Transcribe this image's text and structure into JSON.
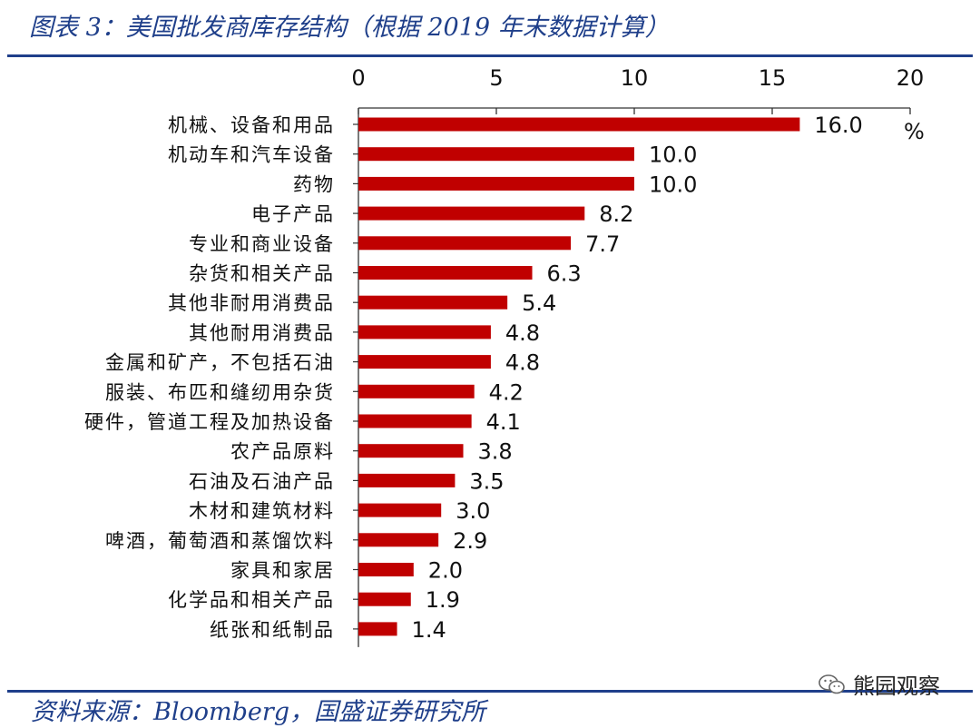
{
  "header": {
    "title": "图表 3：美国批发商库存结构（根据 2019 年末数据计算）"
  },
  "footer": {
    "source": "资料来源：Bloomberg，国盛证券研究所"
  },
  "watermark": {
    "text": "熊园观察",
    "icon": "wechat-icon"
  },
  "colors": {
    "bar": "#c00000",
    "accent": "#1f3f8a",
    "axis": "#333333"
  },
  "chart_data": {
    "type": "bar",
    "orientation": "horizontal",
    "categories": [
      "机械、设备和用品",
      "机动车和汽车设备",
      "药物",
      "电子产品",
      "专业和商业设备",
      "杂货和相关产品",
      "其他非耐用消费品",
      "其他耐用消费品",
      "金属和矿产，不包括石油",
      "服装、布匹和缝纫用杂货",
      "硬件，管道工程及加热设备",
      "农产品原料",
      "石油及石油产品",
      "木材和建筑材料",
      "啤酒，葡萄酒和蒸馏饮料",
      "家具和家居",
      "化学品和相关产品",
      "纸张和纸制品"
    ],
    "values": [
      16.0,
      10.0,
      10.0,
      8.2,
      7.7,
      6.3,
      5.4,
      4.8,
      4.8,
      4.2,
      4.1,
      3.8,
      3.5,
      3.0,
      2.9,
      2.0,
      1.9,
      1.4
    ],
    "value_labels": [
      "16.0",
      "10.0",
      "10.0",
      "8.2",
      "7.7",
      "6.3",
      "5.4",
      "4.8",
      "4.8",
      "4.2",
      "4.1",
      "3.8",
      "3.5",
      "3.0",
      "2.9",
      "2.0",
      "1.9",
      "1.4"
    ],
    "xticks": [
      "0",
      "5",
      "10",
      "15",
      "20"
    ],
    "xlim": [
      0,
      20
    ],
    "xaxis_position": "top",
    "unit": "%",
    "grid": false,
    "legend": "none"
  }
}
